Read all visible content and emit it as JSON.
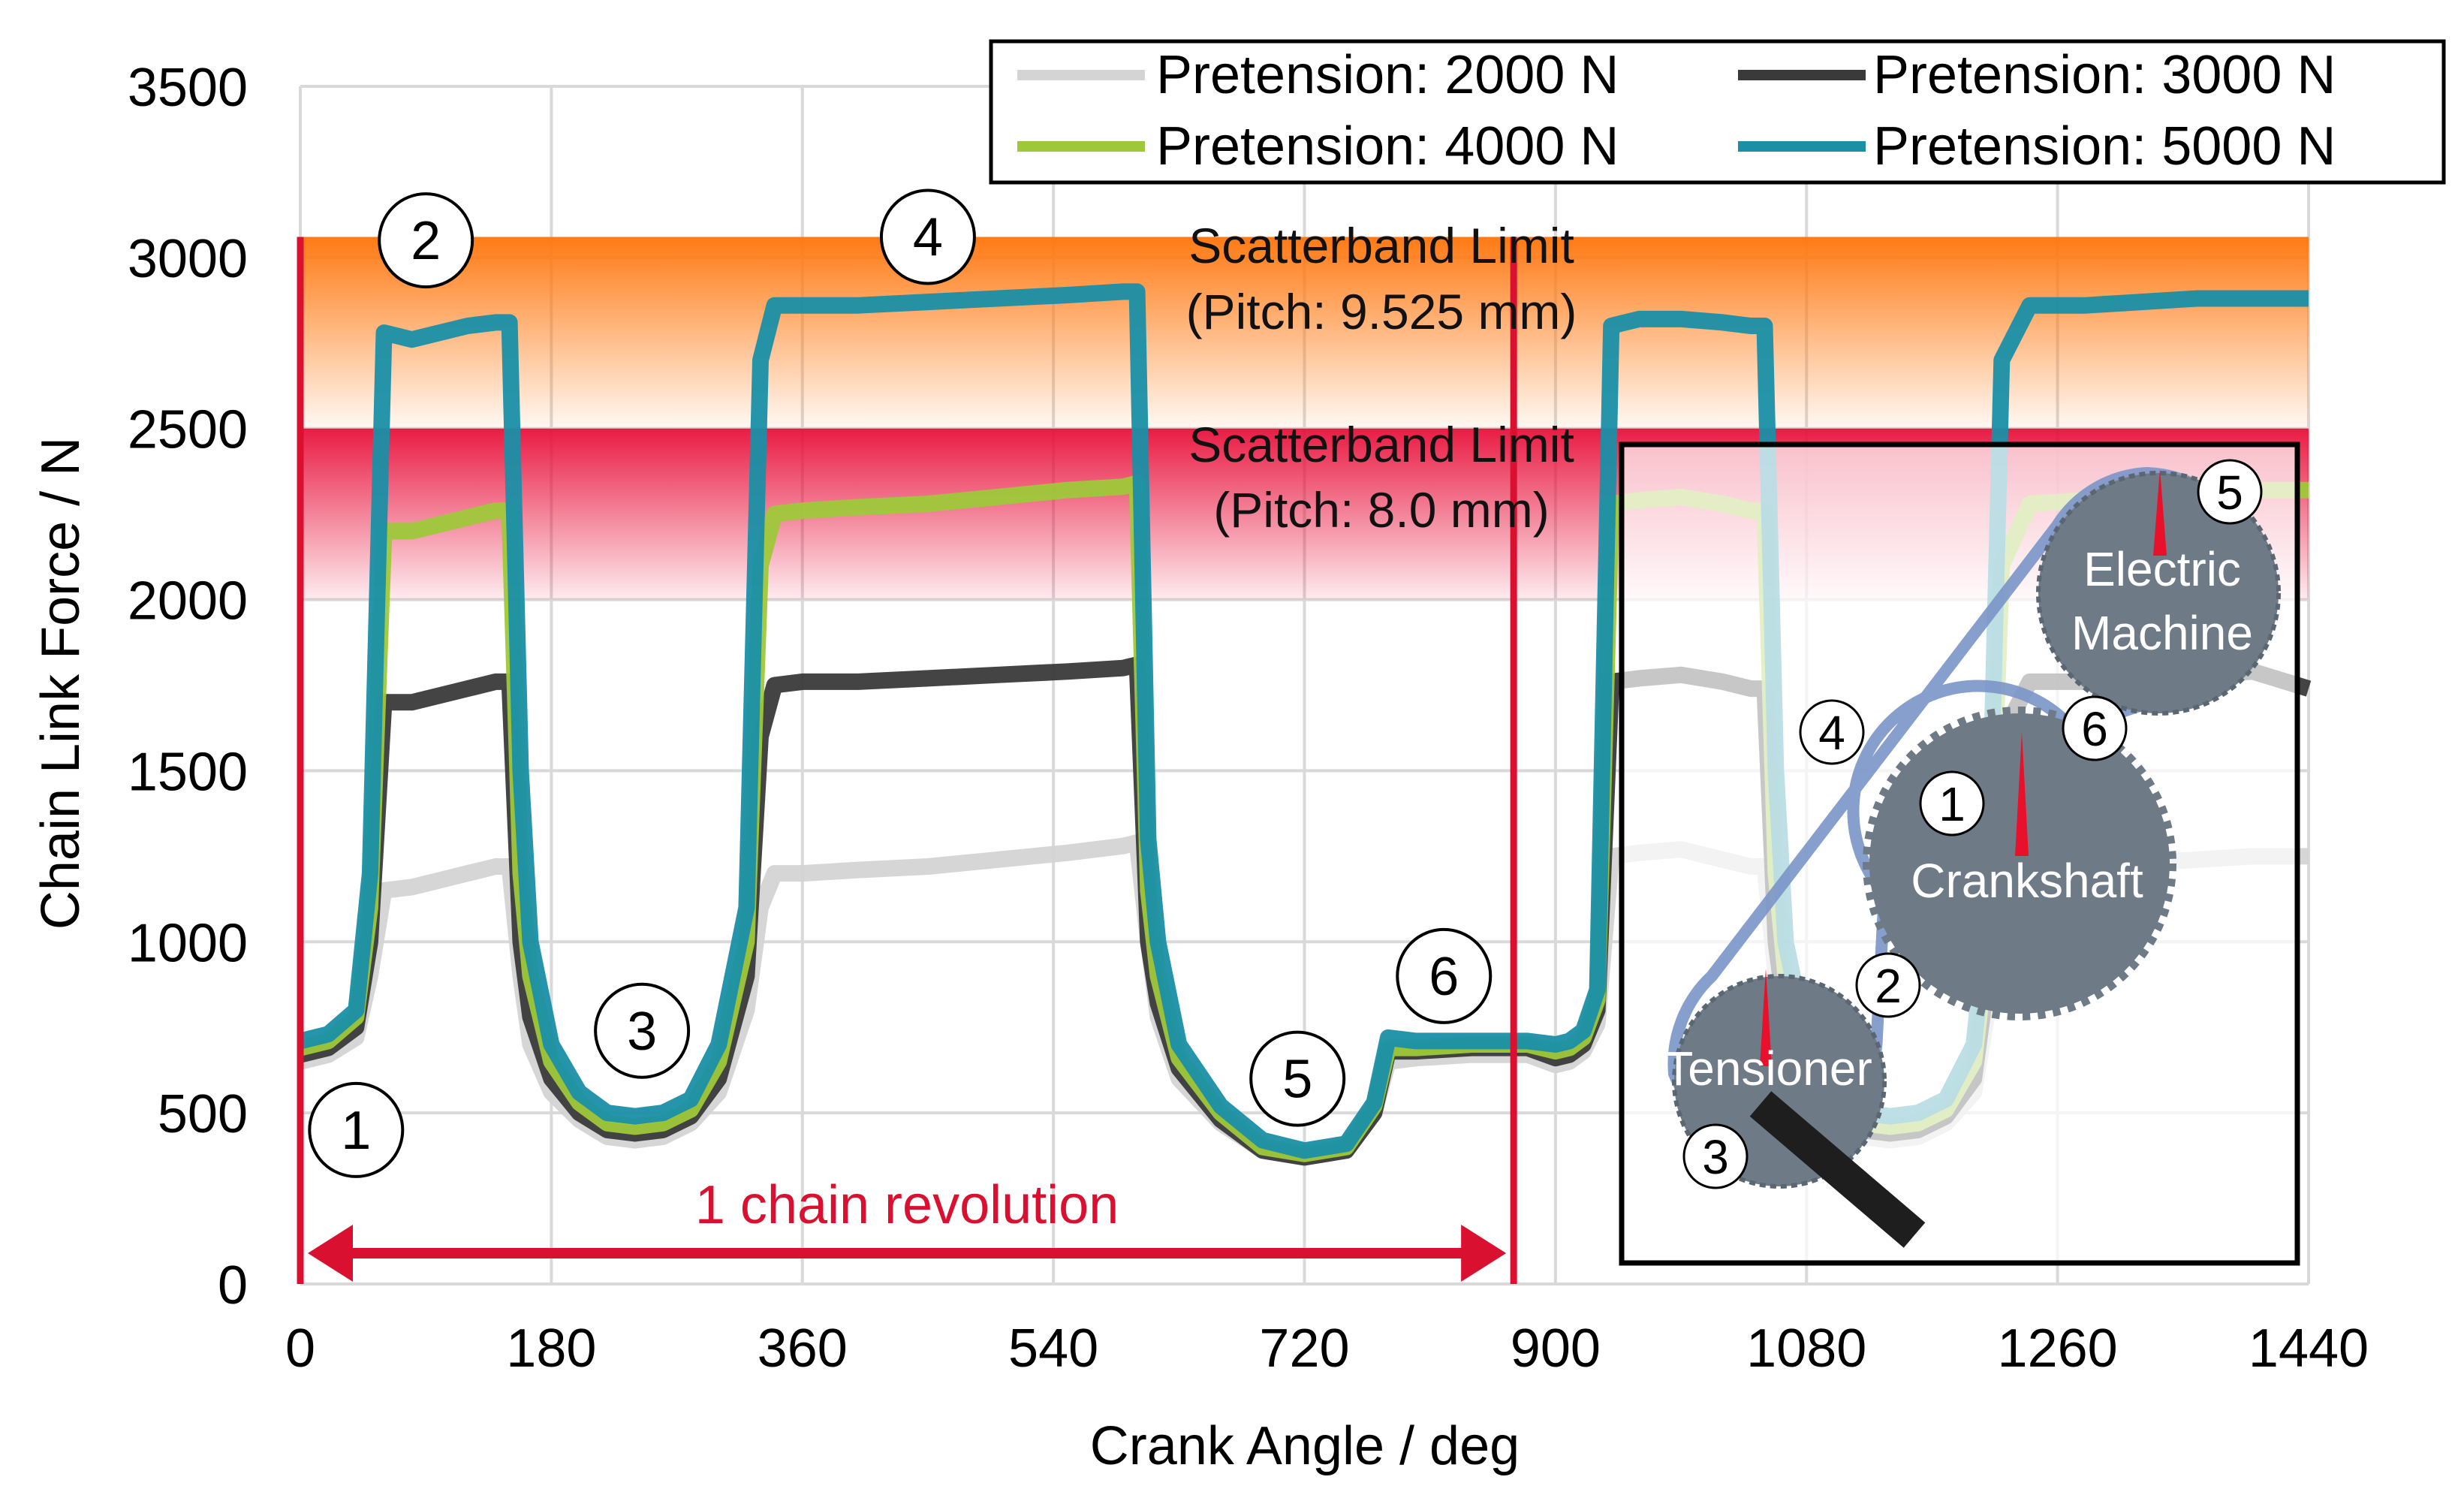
{
  "chart_data": {
    "type": "line",
    "title": "",
    "xlabel": "Crank Angle / deg",
    "ylabel": "Chain Link Force / N",
    "xlim": [
      0,
      1440
    ],
    "ylim": [
      0,
      3500
    ],
    "xticks": [
      0,
      180,
      360,
      540,
      720,
      900,
      1080,
      1260,
      1440
    ],
    "yticks": [
      0,
      500,
      1000,
      1500,
      2000,
      2500,
      3000,
      3500
    ],
    "grid": true,
    "legend_position": "top-right",
    "series": [
      {
        "name": "Pretension: 2000 N",
        "color": "#d4d4d4",
        "x": [
          0,
          20,
          40,
          50,
          60,
          80,
          100,
          120,
          140,
          150,
          158,
          165,
          180,
          200,
          220,
          240,
          260,
          280,
          300,
          320,
          330,
          340,
          360,
          400,
          450,
          500,
          550,
          590,
          600,
          608,
          615,
          630,
          660,
          690,
          720,
          750,
          770,
          780,
          800,
          840,
          880,
          900,
          910,
          920,
          930,
          940,
          960,
          990,
          1020,
          1040,
          1050,
          1058,
          1065,
          1080,
          1100,
          1120,
          1140,
          1160,
          1180,
          1200,
          1210,
          1220,
          1240,
          1280,
          1320,
          1360,
          1400,
          1440
        ],
        "y": [
          650,
          670,
          720,
          900,
          1150,
          1160,
          1180,
          1200,
          1220,
          1220,
          900,
          700,
          560,
          480,
          430,
          420,
          430,
          470,
          560,
          800,
          1100,
          1200,
          1200,
          1210,
          1220,
          1240,
          1260,
          1280,
          1290,
          1000,
          780,
          600,
          470,
          390,
          370,
          390,
          500,
          650,
          660,
          670,
          670,
          640,
          650,
          680,
          760,
          1250,
          1260,
          1270,
          1240,
          1220,
          1220,
          900,
          700,
          560,
          480,
          430,
          420,
          430,
          470,
          560,
          800,
          1100,
          1220,
          1220,
          1230,
          1240,
          1250,
          1250
        ]
      },
      {
        "name": "Pretension: 3000 N",
        "color": "#3a3a3a",
        "x": [
          0,
          20,
          40,
          50,
          60,
          80,
          100,
          120,
          140,
          150,
          158,
          165,
          180,
          200,
          220,
          240,
          260,
          280,
          300,
          320,
          330,
          340,
          360,
          400,
          450,
          500,
          550,
          590,
          600,
          608,
          615,
          630,
          660,
          690,
          720,
          750,
          770,
          780,
          800,
          840,
          880,
          900,
          910,
          920,
          930,
          940,
          960,
          990,
          1020,
          1040,
          1050,
          1058,
          1065,
          1080,
          1100,
          1120,
          1140,
          1160,
          1180,
          1200,
          1210,
          1220,
          1240,
          1280,
          1320,
          1360,
          1400,
          1440
        ],
        "y": [
          670,
          690,
          750,
          1000,
          1700,
          1700,
          1720,
          1740,
          1760,
          1760,
          1000,
          780,
          600,
          500,
          450,
          440,
          450,
          490,
          600,
          900,
          1600,
          1750,
          1760,
          1760,
          1770,
          1780,
          1790,
          1800,
          1810,
          1000,
          820,
          630,
          480,
          390,
          370,
          390,
          500,
          680,
          680,
          690,
          690,
          660,
          670,
          700,
          800,
          1760,
          1770,
          1780,
          1760,
          1740,
          1740,
          1000,
          780,
          600,
          500,
          450,
          440,
          450,
          490,
          600,
          900,
          1600,
          1760,
          1760,
          1770,
          1780,
          1790,
          1740
        ]
      },
      {
        "name": "Pretension: 4000 N",
        "color": "#9ec83a",
        "x": [
          0,
          20,
          40,
          50,
          60,
          80,
          100,
          120,
          140,
          150,
          158,
          165,
          180,
          200,
          220,
          240,
          260,
          280,
          300,
          320,
          330,
          340,
          360,
          400,
          450,
          500,
          550,
          590,
          600,
          608,
          615,
          630,
          660,
          690,
          720,
          750,
          770,
          780,
          800,
          840,
          880,
          900,
          910,
          920,
          930,
          940,
          960,
          990,
          1020,
          1040,
          1050,
          1058,
          1065,
          1080,
          1100,
          1120,
          1140,
          1160,
          1180,
          1200,
          1210,
          1220,
          1240,
          1280,
          1320,
          1360,
          1400,
          1440
        ],
        "y": [
          690,
          710,
          780,
          1100,
          2200,
          2200,
          2220,
          2240,
          2260,
          2260,
          1200,
          900,
          650,
          530,
          470,
          460,
          470,
          510,
          650,
          1000,
          2100,
          2250,
          2260,
          2270,
          2280,
          2300,
          2320,
          2330,
          2340,
          1150,
          900,
          660,
          500,
          400,
          380,
          400,
          520,
          690,
          690,
          700,
          700,
          680,
          690,
          720,
          830,
          2280,
          2290,
          2300,
          2280,
          2260,
          2260,
          1200,
          900,
          650,
          530,
          470,
          460,
          470,
          510,
          650,
          1000,
          2100,
          2280,
          2290,
          2300,
          2310,
          2320,
          2320
        ]
      },
      {
        "name": "Pretension: 5000 N",
        "color": "#1a8fa6",
        "x": [
          0,
          20,
          40,
          50,
          60,
          80,
          100,
          120,
          140,
          150,
          158,
          165,
          180,
          200,
          220,
          240,
          260,
          280,
          300,
          320,
          330,
          340,
          360,
          400,
          450,
          500,
          550,
          590,
          600,
          608,
          615,
          630,
          660,
          690,
          720,
          750,
          770,
          780,
          800,
          840,
          880,
          900,
          910,
          920,
          930,
          940,
          960,
          990,
          1020,
          1040,
          1050,
          1058,
          1065,
          1080,
          1100,
          1120,
          1140,
          1160,
          1180,
          1200,
          1210,
          1220,
          1240,
          1280,
          1320,
          1360,
          1400,
          1440
        ],
        "y": [
          710,
          730,
          800,
          1200,
          2780,
          2760,
          2780,
          2800,
          2810,
          2810,
          1500,
          1000,
          700,
          560,
          500,
          490,
          500,
          540,
          700,
          1100,
          2700,
          2860,
          2860,
          2860,
          2870,
          2880,
          2890,
          2900,
          2900,
          1300,
          1000,
          700,
          520,
          420,
          390,
          410,
          530,
          720,
          710,
          710,
          710,
          700,
          710,
          740,
          860,
          2800,
          2820,
          2820,
          2810,
          2800,
          2800,
          1500,
          1000,
          700,
          560,
          500,
          490,
          500,
          540,
          700,
          1100,
          2700,
          2860,
          2860,
          2870,
          2880,
          2880,
          2880
        ]
      }
    ],
    "bands": [
      {
        "label_line1": "Scatterband Limit",
        "label_line2": "(Pitch: 9.525 mm)",
        "y_from": 2500,
        "y_to": 3060,
        "color": "#ff7f1e"
      },
      {
        "label_line1": "Scatterband Limit",
        "label_line2": "(Pitch: 8.0 mm)",
        "y_from": 2000,
        "y_to": 2500,
        "color": "#e8103a"
      }
    ],
    "vertical_lines": [
      0,
      870
    ],
    "revolution_arrow": {
      "label": "1 chain revolution",
      "x_from": 0,
      "x_to": 870,
      "y": 90,
      "color": "#d9102f"
    },
    "markers": [
      {
        "label": "1",
        "x": 40,
        "y": 450
      },
      {
        "label": "2",
        "x": 90,
        "y": 3050
      },
      {
        "label": "3",
        "x": 245,
        "y": 740
      },
      {
        "label": "4",
        "x": 450,
        "y": 3060
      },
      {
        "label": "5",
        "x": 715,
        "y": 600
      },
      {
        "label": "6",
        "x": 820,
        "y": 900
      }
    ],
    "inset": {
      "labels": {
        "electric_machine_line1": "Electric",
        "electric_machine_line2": "Machine",
        "crankshaft": "Crankshaft",
        "tensioner": "Tensioner"
      },
      "markers": [
        "5",
        "6",
        "1",
        "4",
        "2",
        "3"
      ]
    }
  }
}
